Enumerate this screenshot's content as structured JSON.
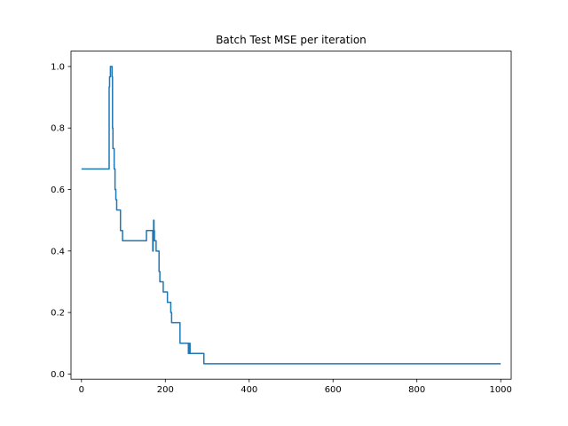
{
  "chart_data": {
    "type": "line",
    "title": "Batch Test MSE per iteration",
    "xlabel": "",
    "ylabel": "",
    "xlim": [
      -25,
      1025
    ],
    "ylim": [
      -0.0167,
      1.05
    ],
    "grid": false,
    "legend": "none",
    "x_ticks": [
      0,
      200,
      400,
      600,
      800,
      1000
    ],
    "x_tick_labels": [
      "0",
      "200",
      "400",
      "600",
      "800",
      "1000"
    ],
    "y_ticks": [
      0.0,
      0.2,
      0.4,
      0.6,
      0.8,
      1.0
    ],
    "y_tick_labels": [
      "0.0",
      "0.2",
      "0.4",
      "0.6",
      "0.8",
      "1.0"
    ],
    "series": [
      {
        "color": "#1f77b4",
        "step": "post",
        "x": [
          0,
          66,
          67,
          69,
          70,
          73,
          74,
          75,
          78,
          80,
          82,
          84,
          86,
          88,
          93,
          95,
          98,
          155,
          170,
          171,
          172,
          173,
          174,
          175,
          178,
          182,
          185,
          187,
          190,
          195,
          200,
          205,
          210,
          213,
          215,
          225,
          235,
          253,
          255,
          257,
          259,
          262,
          275,
          292,
          1000
        ],
        "y": [
          0.6667,
          0.9333,
          0.9667,
          1.0,
          1.0,
          0.9667,
          0.8,
          0.7333,
          0.6667,
          0.6,
          0.5667,
          0.5333,
          0.5333,
          0.5333,
          0.4667,
          0.4667,
          0.4333,
          0.4667,
          0.4,
          0.4667,
          0.5,
          0.4667,
          0.4333,
          0.4333,
          0.4,
          0.4,
          0.3333,
          0.3,
          0.3,
          0.2667,
          0.2667,
          0.2333,
          0.2333,
          0.2,
          0.1667,
          0.1667,
          0.1,
          0.1,
          0.0667,
          0.1,
          0.0667,
          0.0667,
          0.0667,
          0.0333,
          0.0333
        ]
      }
    ]
  }
}
